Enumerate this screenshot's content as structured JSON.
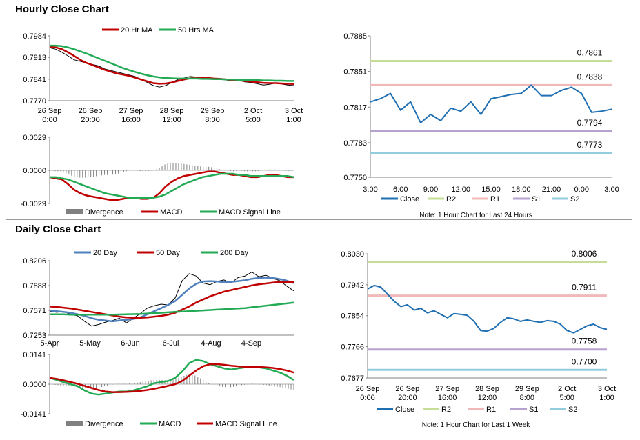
{
  "sections": {
    "hourly_title": "Hourly Close Chart",
    "daily_title": "Daily Close Chart"
  },
  "colors": {
    "ma20": "#c00000",
    "ma50": "#22aa55",
    "ma20day": "#4f81bd",
    "close": "#1f6fb2",
    "r2": "#c5dd96",
    "r1": "#f0b8b8",
    "s1": "#b5a2cf",
    "s2": "#93cddd",
    "divergence": "#808080"
  },
  "chart_data": [
    {
      "id": "hourly_price",
      "type": "line",
      "legend": [
        "20 Hr MA",
        "50 Hrs MA"
      ],
      "y_ticks": [
        "0.7984",
        "0.7913",
        "0.7841",
        "0.7770"
      ],
      "ylim": [
        0.777,
        0.7984
      ],
      "x_ticks": [
        [
          "26 Sep",
          "0:00"
        ],
        [
          "26 Sep",
          "20:00"
        ],
        [
          "27 Sep",
          "16:00"
        ],
        [
          "28 Sep",
          "12:00"
        ],
        [
          "29 Sep",
          "8:00"
        ],
        [
          "2 Oct",
          "5:00"
        ],
        [
          "3 Oct",
          "1:00"
        ]
      ],
      "series": [
        {
          "name": "Close",
          "values": [
            0.7945,
            0.794,
            0.793,
            0.7918,
            0.7905,
            0.79,
            0.7895,
            0.789,
            0.7885,
            0.7875,
            0.787,
            0.7865,
            0.786,
            0.7855,
            0.785,
            0.784,
            0.783,
            0.782,
            0.7815,
            0.782,
            0.783,
            0.784,
            0.7845,
            0.785,
            0.7848,
            0.7845,
            0.7843,
            0.784,
            0.7842,
            0.7838,
            0.7835,
            0.7838,
            0.7832,
            0.783,
            0.7826,
            0.7822,
            0.7824,
            0.7828,
            0.7825,
            0.7822,
            0.782
          ]
        },
        {
          "name": "20 Hr MA",
          "values": [
            0.7948,
            0.7946,
            0.794,
            0.793,
            0.7918,
            0.7905,
            0.7895,
            0.7888,
            0.788,
            0.7872,
            0.7866,
            0.786,
            0.7856,
            0.7852,
            0.7846,
            0.784,
            0.7834,
            0.7828,
            0.7826,
            0.7827,
            0.783,
            0.7835,
            0.784,
            0.7844,
            0.7846,
            0.7846,
            0.7845,
            0.7843,
            0.7842,
            0.784,
            0.7838,
            0.7837,
            0.7835,
            0.7833,
            0.7831,
            0.7829,
            0.7828,
            0.7828,
            0.7827,
            0.7826,
            0.7825
          ]
        },
        {
          "name": "50 Hrs MA",
          "values": [
            0.7952,
            0.7952,
            0.795,
            0.7946,
            0.794,
            0.7933,
            0.7926,
            0.7918,
            0.791,
            0.7902,
            0.7894,
            0.7886,
            0.7878,
            0.7871,
            0.7865,
            0.7859,
            0.7854,
            0.785,
            0.7847,
            0.7845,
            0.7844,
            0.7843,
            0.7843,
            0.7843,
            0.7843,
            0.7842,
            0.7842,
            0.7841,
            0.7841,
            0.784,
            0.784,
            0.7839,
            0.7839,
            0.7838,
            0.7838,
            0.7837,
            0.7837,
            0.7836,
            0.7836,
            0.7835,
            0.7835
          ]
        }
      ]
    },
    {
      "id": "hourly_macd",
      "type": "line",
      "legend": [
        "Divergence",
        "MACD",
        "MACD Signal Line"
      ],
      "y_ticks": [
        "0.0029",
        "0.0000",
        "-0.0029"
      ],
      "ylim": [
        -0.0029,
        0.0029
      ],
      "series": [
        {
          "name": "MACD",
          "values": [
            -0.0006,
            -0.0007,
            -0.0008,
            -0.0012,
            -0.0017,
            -0.002,
            -0.0022,
            -0.0023,
            -0.0024,
            -0.0025,
            -0.0026,
            -0.0026,
            -0.0025,
            -0.0024,
            -0.0024,
            -0.0025,
            -0.0025,
            -0.0024,
            -0.002,
            -0.0014,
            -0.001,
            -0.0007,
            -0.0005,
            -0.0004,
            -0.0003,
            -0.0002,
            -0.0001,
            -0.0001,
            -0.0002,
            -0.0003,
            -0.0004,
            -0.0004,
            -0.0005,
            -0.0006,
            -0.0006,
            -0.0005,
            -0.0004,
            -0.0004,
            -0.0005,
            -0.0006,
            -0.0006
          ]
        },
        {
          "name": "MACD Signal Line",
          "values": [
            -0.0006,
            -0.0006,
            -0.0007,
            -0.0008,
            -0.001,
            -0.0012,
            -0.0014,
            -0.0016,
            -0.0018,
            -0.002,
            -0.0021,
            -0.0022,
            -0.0023,
            -0.0024,
            -0.0024,
            -0.0024,
            -0.0024,
            -0.0024,
            -0.0023,
            -0.0021,
            -0.0018,
            -0.0015,
            -0.0012,
            -0.001,
            -0.0008,
            -0.0006,
            -0.0005,
            -0.0004,
            -0.0003,
            -0.0003,
            -0.0003,
            -0.0004,
            -0.0004,
            -0.0005,
            -0.0005,
            -0.0005,
            -0.0005,
            -0.0005,
            -0.0005,
            -0.0005,
            -0.0006
          ]
        }
      ]
    },
    {
      "id": "hourly_pivot",
      "type": "line",
      "x_ticks": [
        "3:00",
        "6:00",
        "9:00",
        "12:00",
        "15:00",
        "18:00",
        "21:00",
        "0:00",
        "3:00"
      ],
      "y_ticks": [
        "0.7885",
        "0.7851",
        "0.7817",
        "0.7783",
        "0.7750"
      ],
      "ylim": [
        0.775,
        0.7885
      ],
      "legend": [
        "Close",
        "R2",
        "R1",
        "S1",
        "S2"
      ],
      "levels": {
        "R2": 0.7861,
        "R1": 0.7838,
        "S1": 0.7794,
        "S2": 0.7773
      },
      "level_labels": {
        "R2": "0.7861",
        "R1": "0.7838",
        "S1": "0.7794",
        "S2": "0.7773"
      },
      "close": [
        0.7822,
        0.7825,
        0.783,
        0.7814,
        0.7822,
        0.7802,
        0.781,
        0.7804,
        0.7816,
        0.7813,
        0.7822,
        0.781,
        0.7825,
        0.7827,
        0.7829,
        0.783,
        0.7838,
        0.7828,
        0.7828,
        0.7833,
        0.7836,
        0.783,
        0.7812,
        0.7813,
        0.7815
      ],
      "note": "Note: 1 Hour Chart for Last 24 Hours"
    },
    {
      "id": "daily_price",
      "type": "line",
      "legend": [
        "20 Day",
        "50 Day",
        "200 Day"
      ],
      "y_ticks": [
        "0.8206",
        "0.7888",
        "0.7571",
        "0.7253"
      ],
      "ylim": [
        0.7253,
        0.8206
      ],
      "x_ticks": [
        "5-Apr",
        "5-May",
        "6-Jun",
        "6-Jul",
        "4-Aug",
        "4-Sep"
      ],
      "series": [
        {
          "name": "Close",
          "values": [
            0.756,
            0.7545,
            0.7555,
            0.752,
            0.75,
            0.743,
            0.737,
            0.739,
            0.742,
            0.744,
            0.747,
            0.741,
            0.747,
            0.753,
            0.76,
            0.763,
            0.765,
            0.764,
            0.773,
            0.795,
            0.804,
            0.801,
            0.792,
            0.79,
            0.794,
            0.796,
            0.792,
            0.799,
            0.801,
            0.806,
            0.8,
            0.802,
            0.798,
            0.795,
            0.788,
            0.782
          ]
        },
        {
          "name": "20 Day",
          "values": [
            0.757,
            0.756,
            0.755,
            0.754,
            0.752,
            0.75,
            0.747,
            0.745,
            0.744,
            0.743,
            0.744,
            0.745,
            0.746,
            0.748,
            0.752,
            0.756,
            0.76,
            0.764,
            0.769,
            0.777,
            0.785,
            0.791,
            0.794,
            0.7945,
            0.794,
            0.793,
            0.7935,
            0.7945,
            0.7955,
            0.7975,
            0.7985,
            0.799,
            0.7985,
            0.797,
            0.795,
            0.792
          ]
        },
        {
          "name": "50 Day",
          "values": [
            0.762,
            0.7615,
            0.7605,
            0.7595,
            0.758,
            0.7565,
            0.755,
            0.7535,
            0.752,
            0.7505,
            0.749,
            0.748,
            0.7475,
            0.7475,
            0.748,
            0.749,
            0.75,
            0.7515,
            0.754,
            0.758,
            0.762,
            0.767,
            0.771,
            0.775,
            0.778,
            0.781,
            0.783,
            0.785,
            0.787,
            0.789,
            0.7905,
            0.7915,
            0.7925,
            0.7935,
            0.7935,
            0.793
          ]
        },
        {
          "name": "200 Day",
          "values": [
            0.752,
            0.752,
            0.752,
            0.7515,
            0.7515,
            0.7515,
            0.7515,
            0.7515,
            0.7515,
            0.7515,
            0.7518,
            0.752,
            0.7522,
            0.7525,
            0.753,
            0.7535,
            0.754,
            0.7545,
            0.755,
            0.7555,
            0.756,
            0.7565,
            0.757,
            0.7575,
            0.758,
            0.7585,
            0.759,
            0.7595,
            0.76,
            0.761,
            0.762,
            0.763,
            0.764,
            0.765,
            0.766,
            0.767
          ]
        }
      ]
    },
    {
      "id": "daily_macd",
      "type": "line",
      "legend": [
        "Divergence",
        "MACD",
        "MACD Signal Line"
      ],
      "y_ticks": [
        "0.0141",
        "0.0000",
        "-0.0141"
      ],
      "ylim": [
        -0.0141,
        0.0141
      ],
      "series": [
        {
          "name": "MACD",
          "values": [
            0.003,
            0.002,
            0.001,
            0.0,
            -0.001,
            -0.003,
            -0.0045,
            -0.005,
            -0.0045,
            -0.004,
            -0.0035,
            -0.0035,
            -0.003,
            -0.002,
            -0.001,
            0.0005,
            0.001,
            0.0015,
            0.003,
            0.006,
            0.01,
            0.0115,
            0.011,
            0.0095,
            0.0085,
            0.0075,
            0.007,
            0.0075,
            0.008,
            0.0085,
            0.008,
            0.0075,
            0.0065,
            0.0055,
            0.004,
            0.002
          ]
        },
        {
          "name": "MACD Signal Line",
          "values": [
            0.003,
            0.0025,
            0.0018,
            0.001,
            0.0002,
            -0.0008,
            -0.0018,
            -0.0028,
            -0.0035,
            -0.0038,
            -0.0038,
            -0.0037,
            -0.0035,
            -0.0032,
            -0.0028,
            -0.0022,
            -0.0015,
            -0.0008,
            0.0,
            0.0015,
            0.004,
            0.0065,
            0.0085,
            0.0095,
            0.0095,
            0.0092,
            0.0088,
            0.0085,
            0.0083,
            0.0082,
            0.0082,
            0.008,
            0.0077,
            0.0072,
            0.0065,
            0.0055
          ]
        }
      ]
    },
    {
      "id": "daily_pivot",
      "type": "line",
      "x_ticks": [
        [
          "26 Sep",
          "0:00"
        ],
        [
          "26 Sep",
          "20:00"
        ],
        [
          "27 Sep",
          "16:00"
        ],
        [
          "28 Sep",
          "12:00"
        ],
        [
          "29 Sep",
          "8:00"
        ],
        [
          "2 Oct",
          "5:00"
        ],
        [
          "3 Oct",
          "1:00"
        ]
      ],
      "y_ticks": [
        "0.8030",
        "0.7942",
        "0.7854",
        "0.7766",
        "0.7677"
      ],
      "ylim": [
        0.7677,
        0.803
      ],
      "legend": [
        "Close",
        "R2",
        "R1",
        "S1",
        "S2"
      ],
      "levels": {
        "R2": 0.8006,
        "R1": 0.7911,
        "S1": 0.7758,
        "S2": 0.77
      },
      "level_labels": {
        "R2": "0.8006",
        "R1": "0.7911",
        "S1": "0.7758",
        "S2": "0.7700"
      },
      "close": [
        0.793,
        0.794,
        0.7935,
        0.7915,
        0.7895,
        0.788,
        0.7885,
        0.787,
        0.7875,
        0.7862,
        0.7868,
        0.7858,
        0.7848,
        0.786,
        0.7858,
        0.7855,
        0.7838,
        0.7812,
        0.781,
        0.7818,
        0.7835,
        0.7848,
        0.7845,
        0.7838,
        0.7842,
        0.7838,
        0.7835,
        0.784,
        0.7838,
        0.783,
        0.7812,
        0.7805,
        0.7815,
        0.7825,
        0.783,
        0.782,
        0.7815
      ],
      "note": "Note: 1 Hour Chart for Last 1 Week"
    }
  ]
}
